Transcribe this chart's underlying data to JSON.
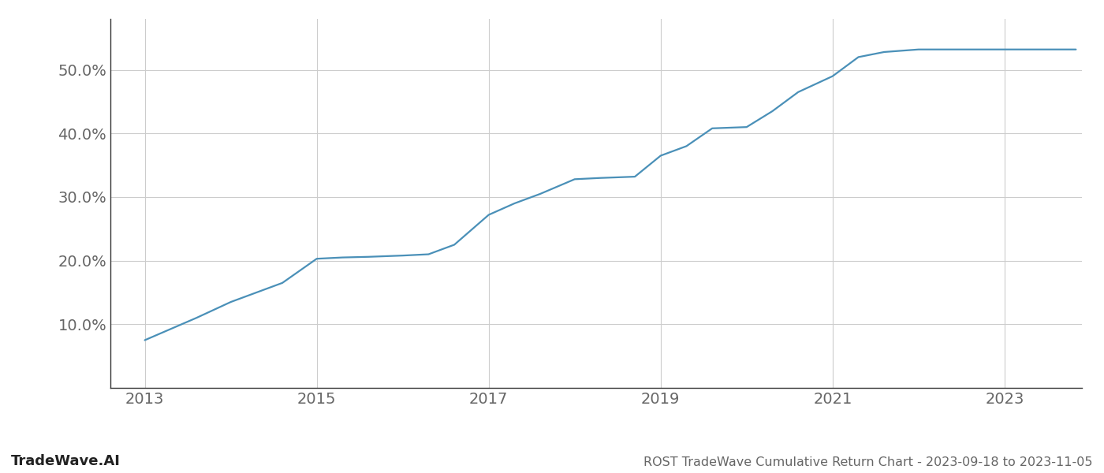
{
  "title": "ROST TradeWave Cumulative Return Chart - 2023-09-18 to 2023-11-05",
  "watermark": "TradeWave.AI",
  "line_color": "#4a90b8",
  "background_color": "#ffffff",
  "grid_color": "#cccccc",
  "x_years": [
    2013.0,
    2013.6,
    2014.0,
    2014.3,
    2014.6,
    2015.0,
    2015.3,
    2015.6,
    2016.0,
    2016.3,
    2016.6,
    2017.0,
    2017.3,
    2017.6,
    2018.0,
    2018.3,
    2018.5,
    2018.7,
    2019.0,
    2019.3,
    2019.6,
    2020.0,
    2020.3,
    2020.6,
    2021.0,
    2021.3,
    2021.6,
    2022.0,
    2022.3,
    2022.6,
    2023.0,
    2023.83
  ],
  "y_values": [
    7.5,
    11.0,
    13.5,
    15.0,
    16.5,
    20.3,
    20.5,
    20.6,
    20.8,
    21.0,
    22.5,
    27.2,
    29.0,
    30.5,
    32.8,
    33.0,
    33.1,
    33.2,
    36.5,
    38.0,
    40.8,
    41.0,
    43.5,
    46.5,
    49.0,
    52.0,
    52.8,
    53.2,
    53.2,
    53.2,
    53.2,
    53.2
  ],
  "xlim": [
    2012.6,
    2023.9
  ],
  "ylim": [
    0,
    58
  ],
  "yticks": [
    10,
    20,
    30,
    40,
    50
  ],
  "ytick_labels": [
    "10.0%",
    "20.0%",
    "30.0%",
    "40.0%",
    "50.0%"
  ],
  "xticks": [
    2013,
    2015,
    2017,
    2019,
    2021,
    2023
  ],
  "tick_fontsize": 14,
  "title_fontsize": 11.5,
  "watermark_fontsize": 13,
  "axis_color": "#333333",
  "tick_color": "#666666"
}
